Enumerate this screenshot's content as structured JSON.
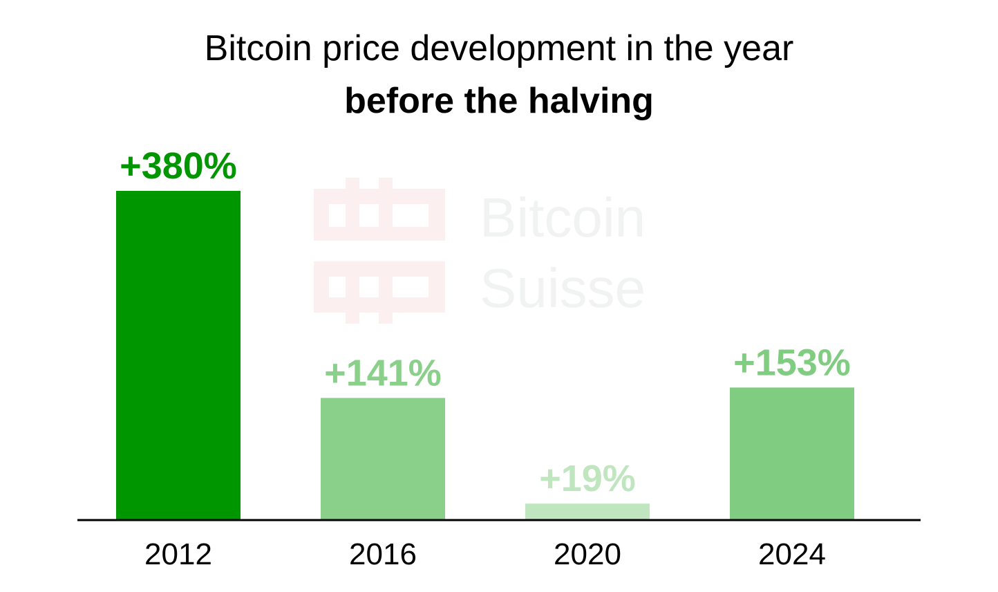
{
  "chart_data": {
    "type": "bar",
    "title": "Bitcoin price development in the year",
    "subtitle": "before the halving",
    "categories": [
      "2012",
      "2016",
      "2020",
      "2024"
    ],
    "values": [
      380,
      141,
      19,
      153
    ],
    "data_labels": [
      "+380%",
      "+141%",
      "+19%",
      "+153%"
    ],
    "colors": [
      "#009600",
      "#8ad08a",
      "#c0e6c0",
      "#80cc80"
    ],
    "unit": "%",
    "ylim": [
      0,
      380
    ],
    "grid": false,
    "xlabel": "",
    "ylabel": "",
    "watermark": "Bitcoin Suisse"
  }
}
